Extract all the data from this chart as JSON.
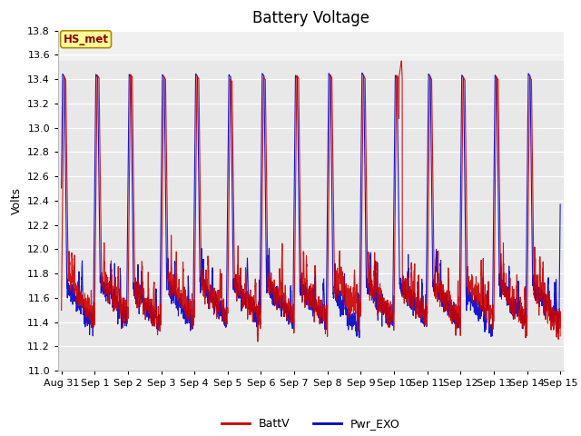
{
  "title": "Battery Voltage",
  "ylabel": "Volts",
  "ylim": [
    11.0,
    13.8
  ],
  "yticks": [
    11.0,
    11.2,
    11.4,
    11.6,
    11.8,
    12.0,
    12.2,
    12.4,
    12.6,
    12.8,
    13.0,
    13.2,
    13.4,
    13.6,
    13.8
  ],
  "x_tick_labels": [
    "Aug 31",
    "Sep 1",
    "Sep 2",
    "Sep 3",
    "Sep 4",
    "Sep 5",
    "Sep 6",
    "Sep 7",
    "Sep 8",
    "Sep 9",
    "Sep 10",
    "Sep 11",
    "Sep 12",
    "Sep 13",
    "Sep 14",
    "Sep 15"
  ],
  "line1_color": "#cc0000",
  "line2_color": "#0000cc",
  "line1_label": "BattV",
  "line2_label": "Pwr_EXO",
  "annotation_text": "HS_met",
  "annotation_bg": "#ffff99",
  "annotation_border": "#aa8800",
  "plot_bg": "#e8e8e8",
  "upper_bg": "#f0f0f0",
  "title_fontsize": 12,
  "axis_fontsize": 9,
  "tick_fontsize": 8,
  "seed": 42
}
